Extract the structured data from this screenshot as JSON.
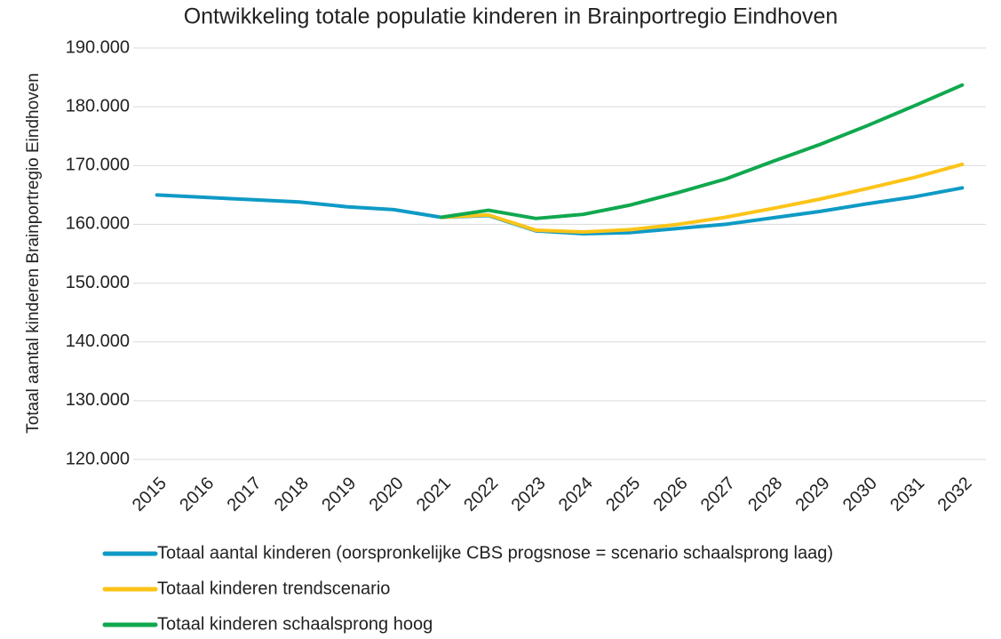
{
  "chart_data": {
    "type": "line",
    "title": "Ontwikkeling totale populatie kinderen in Brainportregio Eindhoven",
    "y_label": "Totaal aantal kinderen Brainportregio Eindhoven",
    "categories": [
      "2015",
      "2016",
      "2017",
      "2018",
      "2019",
      "2020",
      "2021",
      "2022",
      "2023",
      "2024",
      "2025",
      "2026",
      "2027",
      "2028",
      "2029",
      "2030",
      "2031",
      "2032"
    ],
    "series": [
      {
        "name": "Totaal aantal kinderen (oorspronkelijke CBS progsnose = scenario schaalsprong laag)",
        "color": "#0e9ac6",
        "values": [
          165000,
          164600,
          164200,
          163800,
          163000,
          162500,
          161200,
          161500,
          158900,
          158400,
          158600,
          159300,
          160000,
          161100,
          162200,
          163500,
          164700,
          166200
        ]
      },
      {
        "name": "Totaal kinderen trendscenario",
        "color": "#fcc419",
        "values": [
          null,
          null,
          null,
          null,
          null,
          null,
          161200,
          161600,
          159000,
          158700,
          159100,
          160000,
          161200,
          162700,
          164300,
          166100,
          168000,
          170200
        ]
      },
      {
        "name": "Totaal kinderen schaalsprong hoog",
        "color": "#10a84f",
        "values": [
          null,
          null,
          null,
          null,
          null,
          null,
          161200,
          162400,
          161000,
          161700,
          163300,
          165400,
          167700,
          170700,
          173600,
          176800,
          180200,
          183700
        ]
      }
    ],
    "ylim": [
      120000,
      190000
    ],
    "yticks": [
      {
        "value": 120000,
        "label": "120.000"
      },
      {
        "value": 130000,
        "label": "130.000"
      },
      {
        "value": 140000,
        "label": "140.000"
      },
      {
        "value": 150000,
        "label": "150.000"
      },
      {
        "value": 160000,
        "label": "160.000"
      },
      {
        "value": 170000,
        "label": "170.000"
      },
      {
        "value": 180000,
        "label": "180.000"
      },
      {
        "value": 190000,
        "label": "190.000"
      }
    ],
    "grid": true,
    "legend": "bottom"
  }
}
